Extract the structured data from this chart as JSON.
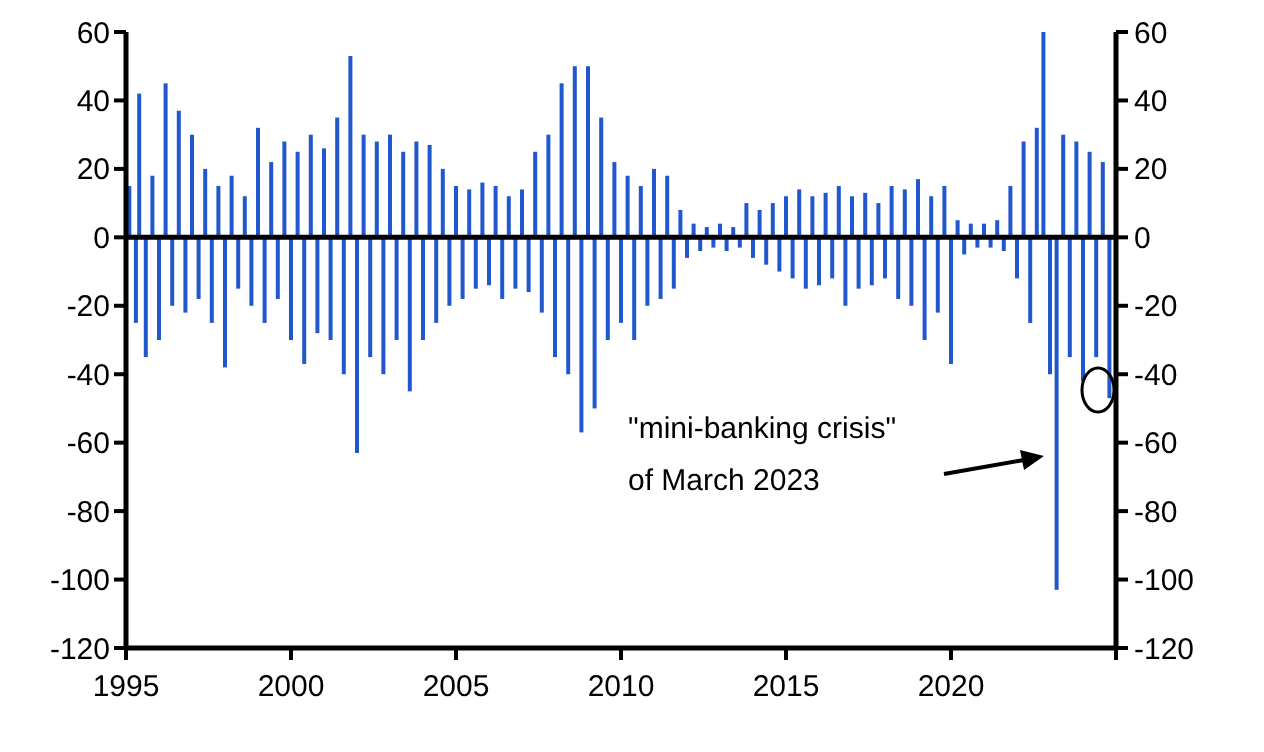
{
  "chart_data": {
    "type": "bar",
    "color": "#2157cc",
    "x": [
      1995.1,
      1995.3,
      1995.4,
      1995.6,
      1995.8,
      1996.0,
      1996.2,
      1996.4,
      1996.6,
      1996.8,
      1997.0,
      1997.2,
      1997.4,
      1997.6,
      1997.8,
      1998.0,
      1998.2,
      1998.4,
      1998.6,
      1998.8,
      1999.0,
      1999.2,
      1999.4,
      1999.6,
      1999.8,
      2000.0,
      2000.2,
      2000.4,
      2000.6,
      2000.8,
      2001.0,
      2001.2,
      2001.4,
      2001.6,
      2001.8,
      2002.0,
      2002.2,
      2002.4,
      2002.6,
      2002.8,
      2003.0,
      2003.2,
      2003.4,
      2003.6,
      2003.8,
      2004.0,
      2004.2,
      2004.4,
      2004.6,
      2004.8,
      2005.0,
      2005.2,
      2005.4,
      2005.6,
      2005.8,
      2006.0,
      2006.2,
      2006.4,
      2006.6,
      2006.8,
      2007.0,
      2007.2,
      2007.4,
      2007.6,
      2007.8,
      2008.0,
      2008.2,
      2008.4,
      2008.6,
      2008.8,
      2009.0,
      2009.2,
      2009.4,
      2009.6,
      2009.8,
      2010.0,
      2010.2,
      2010.4,
      2010.6,
      2010.8,
      2011.0,
      2011.2,
      2011.4,
      2011.6,
      2011.8,
      2012.0,
      2012.2,
      2012.4,
      2012.6,
      2012.8,
      2013.0,
      2013.2,
      2013.4,
      2013.6,
      2013.8,
      2014.0,
      2014.2,
      2014.4,
      2014.6,
      2014.8,
      2015.0,
      2015.2,
      2015.4,
      2015.6,
      2015.8,
      2016.0,
      2016.2,
      2016.4,
      2016.6,
      2016.8,
      2017.0,
      2017.2,
      2017.4,
      2017.6,
      2017.8,
      2018.0,
      2018.2,
      2018.4,
      2018.6,
      2018.8,
      2019.0,
      2019.2,
      2019.4,
      2019.6,
      2019.8,
      2020.0,
      2020.2,
      2020.4,
      2020.6,
      2020.8,
      2021.0,
      2021.2,
      2021.4,
      2021.6,
      2021.8,
      2022.0,
      2022.2,
      2022.4,
      2022.6,
      2022.8,
      2023.0,
      2023.2,
      2023.4,
      2023.6,
      2023.8,
      2024.0,
      2024.2,
      2024.4,
      2024.6,
      2024.8
    ],
    "values": [
      15,
      -25,
      42,
      -35,
      18,
      -30,
      45,
      -20,
      37,
      -22,
      30,
      -18,
      20,
      -25,
      15,
      -38,
      18,
      -15,
      12,
      -20,
      32,
      -25,
      22,
      -18,
      28,
      -30,
      25,
      -37,
      30,
      -28,
      26,
      -30,
      35,
      -40,
      53,
      -63,
      30,
      -35,
      28,
      -40,
      30,
      -30,
      25,
      -45,
      28,
      -30,
      27,
      -25,
      20,
      -20,
      15,
      -18,
      14,
      -15,
      16,
      -14,
      15,
      -18,
      12,
      -15,
      14,
      -16,
      25,
      -22,
      30,
      -35,
      45,
      -40,
      50,
      -57,
      50,
      -50,
      35,
      -30,
      22,
      -25,
      18,
      -30,
      15,
      -20,
      20,
      -18,
      18,
      -15,
      8,
      -6,
      4,
      -4,
      3,
      -3,
      4,
      -4,
      3,
      -3,
      10,
      -6,
      8,
      -8,
      10,
      -10,
      12,
      -12,
      14,
      -15,
      12,
      -14,
      13,
      -12,
      15,
      -20,
      12,
      -15,
      13,
      -14,
      10,
      -12,
      15,
      -18,
      14,
      -20,
      17,
      -30,
      12,
      -22,
      15,
      -37,
      5,
      -5,
      4,
      -3,
      4,
      -3,
      5,
      -4,
      15,
      -12,
      28,
      -25,
      32,
      60,
      -40,
      -103,
      30,
      -35,
      28,
      -42,
      25,
      -35,
      22,
      -47
    ],
    "xlim": [
      1995,
      2025
    ],
    "xticks": [
      1995,
      2000,
      2005,
      2010,
      2015,
      2020,
      {
        "value": 2025,
        "label": null
      }
    ],
    "ylim": [
      -120,
      60
    ],
    "yticks": [
      -120,
      -100,
      -80,
      -60,
      -40,
      -20,
      0,
      20,
      40,
      60
    ],
    "y2lim": [
      -120,
      60
    ],
    "y2ticks": [
      -120,
      -100,
      -80,
      -60,
      -40,
      -20,
      0,
      20,
      40,
      60
    ],
    "ref_lines": [
      {
        "axis": "y",
        "value": 0,
        "color": "#000000"
      }
    ],
    "annotations": [
      "\"mini-banking crisis\"\nof March 2023"
    ]
  }
}
